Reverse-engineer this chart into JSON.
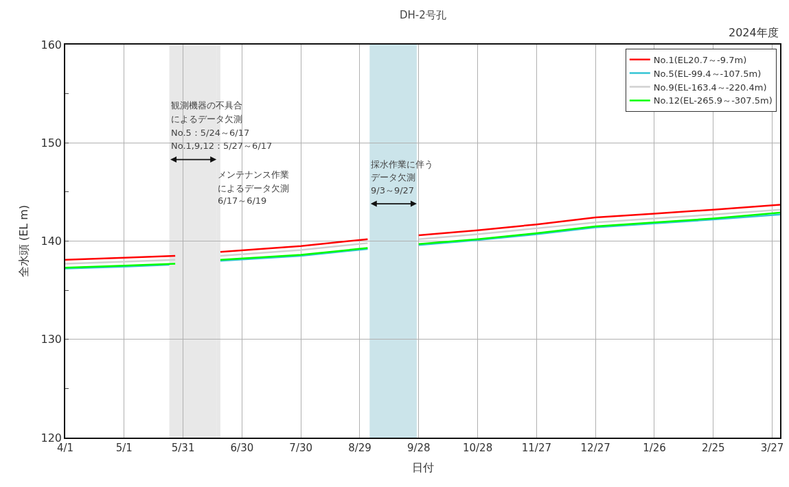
{
  "chart_data": {
    "type": "line",
    "title": "DH-2号孔",
    "subtitle": "2024年度",
    "xlabel": "日付",
    "ylabel": "全水頭 (EL m)",
    "series": [
      {
        "name": "No.1(EL20.7～-9.7m)",
        "color": "#ff0000",
        "x": [
          "2024-04-01",
          "2024-05-01",
          "2024-05-27",
          null,
          "2024-06-19",
          "2024-07-30",
          "2024-09-02",
          null,
          "2024-09-28",
          "2024-10-28",
          "2024-11-27",
          "2024-12-27",
          "2025-01-26",
          "2025-02-25",
          "2025-03-31"
        ],
        "values": [
          138.1,
          138.3,
          138.5,
          null,
          138.9,
          139.5,
          140.2,
          null,
          140.6,
          141.1,
          141.7,
          142.4,
          142.8,
          143.2,
          143.7
        ]
      },
      {
        "name": "No.5(EL-99.4～-107.5m)",
        "color": "#33c4d4",
        "x": [
          "2024-04-01",
          "2024-05-01",
          "2024-05-24",
          null,
          "2024-06-19",
          "2024-07-30",
          "2024-09-02",
          null,
          "2024-09-28",
          "2024-10-28",
          "2024-11-27",
          "2024-12-27",
          "2025-01-26",
          "2025-02-25",
          "2025-03-31"
        ],
        "values": [
          137.2,
          137.4,
          137.6,
          null,
          138.0,
          138.5,
          139.2,
          null,
          139.6,
          140.1,
          140.7,
          141.4,
          141.8,
          142.2,
          142.7
        ]
      },
      {
        "name": "No.9(EL-163.4～-220.4m)",
        "color": "#d0d0d0",
        "x": [
          "2024-04-01",
          "2024-05-01",
          "2024-05-27",
          null,
          "2024-06-19",
          "2024-07-30",
          "2024-09-02",
          null,
          "2024-09-28",
          "2024-10-28",
          "2024-11-27",
          "2024-12-27",
          "2025-01-26",
          "2025-02-25",
          "2025-03-31"
        ],
        "values": [
          137.7,
          137.9,
          138.1,
          null,
          138.5,
          139.1,
          139.8,
          null,
          140.2,
          140.7,
          141.3,
          141.9,
          142.3,
          142.7,
          143.2
        ]
      },
      {
        "name": "No.12(EL-265.9～-307.5m)",
        "color": "#00ff00",
        "x": [
          "2024-04-01",
          "2024-05-01",
          "2024-05-27",
          null,
          "2024-06-19",
          "2024-07-30",
          "2024-09-02",
          null,
          "2024-09-28",
          "2024-10-28",
          "2024-11-27",
          "2024-12-27",
          "2025-01-26",
          "2025-02-25",
          "2025-03-31"
        ],
        "values": [
          137.3,
          137.5,
          137.7,
          null,
          138.1,
          138.6,
          139.3,
          null,
          139.7,
          140.2,
          140.8,
          141.5,
          141.9,
          142.3,
          142.9
        ]
      }
    ],
    "bands": [
      {
        "axis": "x",
        "from": "2024-05-24",
        "to": "2024-06-17",
        "color": "#e8e8e8"
      },
      {
        "axis": "x",
        "from": "2024-06-17",
        "to": "2024-06-19",
        "color": "#e8e8e8"
      },
      {
        "axis": "x",
        "from": "2024-09-03",
        "to": "2024-09-27",
        "color": "#cbe4ea"
      }
    ],
    "annotations": [
      {
        "text": "観測機器の不具合",
        "x": "2024-05-24",
        "y": 153.8
      },
      {
        "text": "によるデータ欠測",
        "x": "2024-05-24",
        "y": 152.4
      },
      {
        "text": "No.5：5/24～6/17",
        "x": "2024-05-24",
        "y": 151.0
      },
      {
        "text": "No.1,9,12：5/27～6/17",
        "x": "2024-05-24",
        "y": 149.7
      },
      {
        "text": "メンテナンス作業",
        "x": "2024-06-17",
        "y": 146.8
      },
      {
        "text": "によるデータ欠測",
        "x": "2024-06-17",
        "y": 145.4
      },
      {
        "text": "6/17～6/19",
        "x": "2024-06-17",
        "y": 144.1
      },
      {
        "text": "採水作業に伴う",
        "x": "2024-09-03",
        "y": 147.8
      },
      {
        "text": "データ欠測",
        "x": "2024-09-03",
        "y": 146.5
      },
      {
        "text": "9/3～9/27",
        "x": "2024-09-03",
        "y": 145.2
      }
    ],
    "xlim": [
      "2024-04-01",
      "2025-03-31"
    ],
    "xticks": [
      {
        "value": "2024-04-01",
        "label": "4/1"
      },
      {
        "value": "2024-05-01",
        "label": "5/1"
      },
      {
        "value": "2024-05-31",
        "label": "5/31"
      },
      {
        "value": "2024-06-30",
        "label": "6/30"
      },
      {
        "value": "2024-07-30",
        "label": "7/30"
      },
      {
        "value": "2024-08-29",
        "label": "8/29"
      },
      {
        "value": "2024-09-28",
        "label": "9/28"
      },
      {
        "value": "2024-10-28",
        "label": "10/28"
      },
      {
        "value": "2024-11-27",
        "label": "11/27"
      },
      {
        "value": "2024-12-27",
        "label": "12/27"
      },
      {
        "value": "2025-01-26",
        "label": "1/26"
      },
      {
        "value": "2025-02-25",
        "label": "2/25"
      },
      {
        "value": "2025-03-27",
        "label": "3/27"
      }
    ],
    "ylim": [
      120,
      160
    ],
    "yticks": [
      120,
      {
        "value": 125,
        "label": null
      },
      130,
      {
        "value": 135,
        "label": null
      },
      140,
      {
        "value": 145,
        "label": null
      },
      150,
      {
        "value": 155,
        "label": null
      },
      160
    ],
    "grid": true,
    "legend": "top right",
    "marker": "none",
    "line_style": "solid"
  }
}
